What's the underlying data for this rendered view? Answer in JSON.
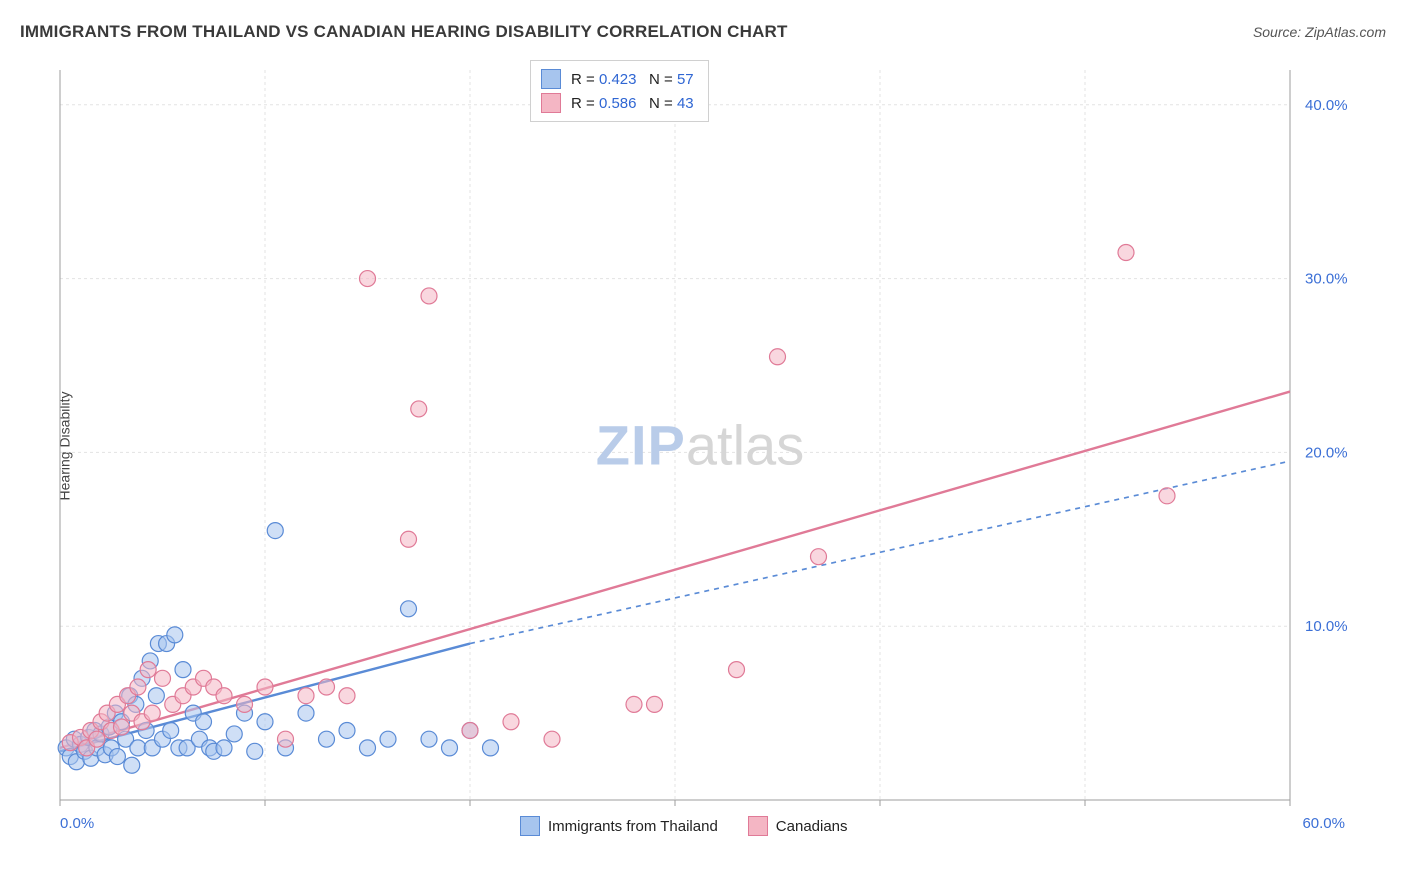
{
  "header": {
    "title": "IMMIGRANTS FROM THAILAND VS CANADIAN HEARING DISABILITY CORRELATION CHART",
    "source_prefix": "Source: ",
    "source_link": "ZipAtlas.com"
  },
  "yaxis": {
    "title": "Hearing Disability"
  },
  "watermark": {
    "zip": "ZIP",
    "atlas": "atlas"
  },
  "chart": {
    "type": "scatter",
    "background_color": "#ffffff",
    "grid_color": "#e3e3e3",
    "axis_color": "#9e9e9e",
    "tick_label_color": "#3b6fd6",
    "label_fontsize": 14,
    "tick_fontsize": 15,
    "xlim": [
      0,
      60
    ],
    "ylim": [
      0,
      42
    ],
    "x_ticks": [
      0,
      10,
      20,
      30,
      40,
      50,
      60
    ],
    "y_ticks": [
      10,
      20,
      30,
      40
    ],
    "x_tick_labels": [
      "0.0%",
      "",
      "",
      "",
      "",
      "",
      "60.0%"
    ],
    "y_tick_labels": [
      "10.0%",
      "20.0%",
      "30.0%",
      "40.0%"
    ],
    "marker_radius": 8,
    "marker_opacity": 0.55,
    "line_width": 2.4,
    "series": [
      {
        "name": "Immigrants from Thailand",
        "color_fill": "#a7c5ee",
        "color_stroke": "#5a8bd6",
        "legend_R": "0.423",
        "legend_N": "57",
        "points": [
          [
            0.3,
            3.0
          ],
          [
            0.5,
            2.5
          ],
          [
            0.7,
            3.5
          ],
          [
            0.8,
            2.2
          ],
          [
            1.0,
            3.2
          ],
          [
            1.2,
            2.8
          ],
          [
            1.4,
            3.6
          ],
          [
            1.5,
            2.4
          ],
          [
            1.7,
            4.0
          ],
          [
            1.8,
            3.0
          ],
          [
            2.0,
            3.8
          ],
          [
            2.2,
            2.6
          ],
          [
            2.4,
            4.2
          ],
          [
            2.5,
            3.0
          ],
          [
            2.7,
            5.0
          ],
          [
            2.8,
            2.5
          ],
          [
            3.0,
            4.5
          ],
          [
            3.2,
            3.5
          ],
          [
            3.4,
            6.0
          ],
          [
            3.5,
            2.0
          ],
          [
            3.7,
            5.5
          ],
          [
            3.8,
            3.0
          ],
          [
            4.0,
            7.0
          ],
          [
            4.2,
            4.0
          ],
          [
            4.4,
            8.0
          ],
          [
            4.5,
            3.0
          ],
          [
            4.7,
            6.0
          ],
          [
            4.8,
            9.0
          ],
          [
            5.0,
            3.5
          ],
          [
            5.2,
            9.0
          ],
          [
            5.4,
            4.0
          ],
          [
            5.6,
            9.5
          ],
          [
            5.8,
            3.0
          ],
          [
            6.0,
            7.5
          ],
          [
            6.2,
            3.0
          ],
          [
            6.5,
            5.0
          ],
          [
            6.8,
            3.5
          ],
          [
            7.0,
            4.5
          ],
          [
            7.3,
            3.0
          ],
          [
            7.5,
            2.8
          ],
          [
            8.0,
            3.0
          ],
          [
            8.5,
            3.8
          ],
          [
            9.0,
            5.0
          ],
          [
            9.5,
            2.8
          ],
          [
            10.0,
            4.5
          ],
          [
            10.5,
            15.5
          ],
          [
            11.0,
            3.0
          ],
          [
            12.0,
            5.0
          ],
          [
            13.0,
            3.5
          ],
          [
            14.0,
            4.0
          ],
          [
            15.0,
            3.0
          ],
          [
            16.0,
            3.5
          ],
          [
            17.0,
            11.0
          ],
          [
            18.0,
            3.5
          ],
          [
            19.0,
            3.0
          ],
          [
            20.0,
            4.0
          ],
          [
            21.0,
            3.0
          ]
        ],
        "trend": {
          "x1": 0,
          "y1": 2.8,
          "x2": 20,
          "y2": 9.0,
          "dash_x2": 60,
          "dash_y2": 19.5,
          "dash": "5 5"
        }
      },
      {
        "name": "Canadians",
        "color_fill": "#f4b6c4",
        "color_stroke": "#e07a97",
        "legend_R": "0.586",
        "legend_N": "43",
        "points": [
          [
            0.5,
            3.3
          ],
          [
            1.0,
            3.6
          ],
          [
            1.3,
            3.0
          ],
          [
            1.5,
            4.0
          ],
          [
            1.8,
            3.5
          ],
          [
            2.0,
            4.5
          ],
          [
            2.3,
            5.0
          ],
          [
            2.5,
            4.0
          ],
          [
            2.8,
            5.5
          ],
          [
            3.0,
            4.2
          ],
          [
            3.3,
            6.0
          ],
          [
            3.5,
            5.0
          ],
          [
            3.8,
            6.5
          ],
          [
            4.0,
            4.5
          ],
          [
            4.3,
            7.5
          ],
          [
            4.5,
            5.0
          ],
          [
            5.0,
            7.0
          ],
          [
            5.5,
            5.5
          ],
          [
            6.0,
            6.0
          ],
          [
            6.5,
            6.5
          ],
          [
            7.0,
            7.0
          ],
          [
            7.5,
            6.5
          ],
          [
            8.0,
            6.0
          ],
          [
            9.0,
            5.5
          ],
          [
            10.0,
            6.5
          ],
          [
            11.0,
            3.5
          ],
          [
            12.0,
            6.0
          ],
          [
            13.0,
            6.5
          ],
          [
            14.0,
            6.0
          ],
          [
            15.0,
            30.0
          ],
          [
            17.0,
            15.0
          ],
          [
            17.5,
            22.5
          ],
          [
            18.0,
            29.0
          ],
          [
            20.0,
            4.0
          ],
          [
            22.0,
            4.5
          ],
          [
            24.0,
            3.5
          ],
          [
            28.0,
            5.5
          ],
          [
            29.0,
            5.5
          ],
          [
            33.0,
            7.5
          ],
          [
            35.0,
            25.5
          ],
          [
            37.0,
            14.0
          ],
          [
            52.0,
            31.5
          ],
          [
            54.0,
            17.5
          ]
        ],
        "trend": {
          "x1": 0,
          "y1": 3.0,
          "x2": 60,
          "y2": 23.5,
          "dash": null
        }
      }
    ],
    "legend_top": {
      "R_label": "R = ",
      "N_label": "N = "
    },
    "legend_bottom": {
      "labels": [
        "Immigrants from Thailand",
        "Canadians"
      ]
    }
  }
}
